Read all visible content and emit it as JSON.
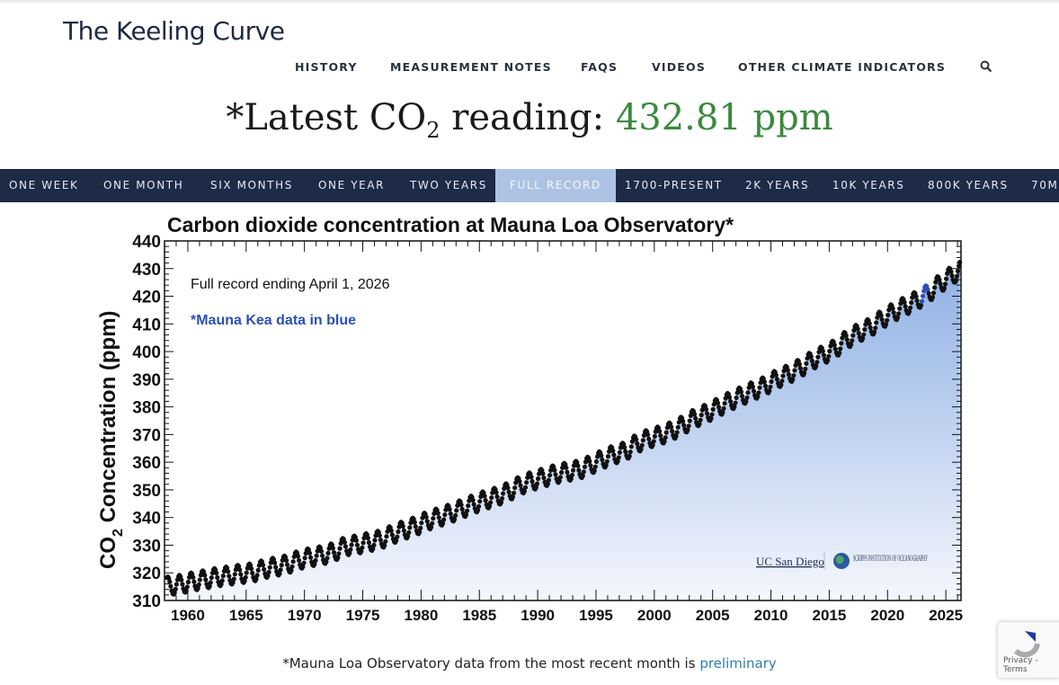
{
  "site": {
    "title": "The Keeling Curve"
  },
  "nav": {
    "items": [
      "HISTORY",
      "MEASUREMENT NOTES",
      "FAQS",
      "VIDEOS",
      "OTHER CLIMATE INDICATORS"
    ],
    "search_icon": "search-icon"
  },
  "latest": {
    "prefix": "*Latest CO",
    "sub": "2",
    "label_suffix": " reading: ",
    "value": "432.81 ppm",
    "value_color": "#3a8a3e"
  },
  "ranges": {
    "items": [
      "ONE WEEK",
      "ONE MONTH",
      "SIX MONTHS",
      "ONE YEAR",
      "TWO YEARS",
      "FULL RECORD",
      "1700-PRESENT",
      "2K YEARS",
      "10K YEARS",
      "800K YEARS",
      "70M"
    ],
    "active": "FULL RECORD"
  },
  "chart_data": {
    "type": "scatter",
    "title": "Carbon dioxide concentration at Mauna Loa Observatory*",
    "ylabel_prefix": "CO",
    "ylabel_sub": "2",
    "ylabel_suffix": " Concentration (ppm)",
    "annotation_record": "Full record ending April 1, 2026",
    "annotation_kea": "*Mauna Kea data in blue",
    "logos": [
      "UC San Diego",
      "SCRIPPS INSTITUTION OF OCEANOGRAPHY"
    ],
    "xlim": [
      1958,
      2026.3
    ],
    "ylim": [
      310,
      440
    ],
    "xticks": [
      1960,
      1965,
      1970,
      1975,
      1980,
      1985,
      1990,
      1995,
      2000,
      2005,
      2010,
      2015,
      2020,
      2025
    ],
    "yticks": [
      310,
      320,
      330,
      340,
      350,
      360,
      370,
      380,
      390,
      400,
      410,
      420,
      430,
      440
    ],
    "seasonal_amplitude_ppm": 3.3,
    "series": [
      {
        "years": [
          1958,
          1959,
          1960,
          1961,
          1962,
          1963,
          1964,
          1965,
          1966,
          1967,
          1968,
          1969,
          1970,
          1971,
          1972,
          1973,
          1974,
          1975,
          1976,
          1977,
          1978,
          1979,
          1980,
          1981,
          1982,
          1983,
          1984,
          1985,
          1986,
          1987,
          1988,
          1989,
          1990,
          1991,
          1992,
          1993,
          1994,
          1995,
          1996,
          1997,
          1998,
          1999,
          2000,
          2001,
          2002,
          2003,
          2004,
          2005,
          2006,
          2007,
          2008,
          2009,
          2010,
          2011,
          2012,
          2013,
          2014,
          2015,
          2016,
          2017,
          2018,
          2019,
          2020,
          2021,
          2022,
          2023,
          2024,
          2025,
          2026
        ],
        "annual_mean_ppm": [
          315.3,
          315.98,
          316.91,
          317.64,
          318.45,
          318.99,
          319.62,
          320.04,
          321.37,
          322.18,
          323.05,
          324.62,
          325.68,
          326.32,
          327.46,
          329.68,
          330.19,
          331.12,
          332.03,
          333.84,
          335.41,
          336.84,
          338.76,
          340.12,
          341.48,
          343.15,
          344.87,
          346.35,
          347.61,
          349.31,
          351.69,
          353.2,
          354.45,
          355.7,
          356.54,
          357.21,
          358.96,
          360.97,
          362.74,
          363.88,
          366.84,
          368.54,
          369.71,
          371.32,
          373.45,
          375.98,
          377.7,
          379.98,
          382.09,
          384.02,
          385.83,
          387.64,
          390.1,
          391.85,
          394.06,
          396.74,
          398.81,
          401.01,
          404.41,
          406.76,
          408.72,
          411.65,
          414.21,
          416.41,
          418.53,
          421.08,
          424.61,
          427.5,
          430.2
        ]
      }
    ],
    "mauna_kea_color": "#2b4fb8",
    "grid": false
  },
  "footnote": {
    "text": "*Mauna Loa Observatory data from the most recent month is ",
    "link": "preliminary"
  },
  "recaptcha": {
    "text": "Privacy - Terms"
  }
}
